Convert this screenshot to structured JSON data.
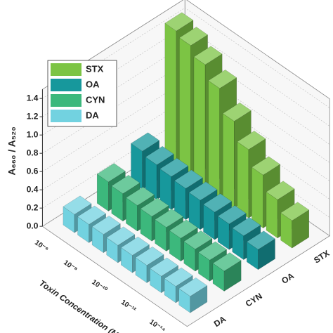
{
  "chart_data": {
    "type": "bar3d",
    "ylabel": "A₆₆₀ / A₅₂₀",
    "xlabel": "Toxin Concentration (M)",
    "categories": [
      "10⁻⁶",
      null,
      "10⁻⁸",
      null,
      "10⁻¹⁰",
      null,
      "10⁻¹²",
      null,
      "10⁻¹⁴"
    ],
    "series": [
      {
        "name": "DA",
        "color": "#72d2e0",
        "values": [
          0.2,
          0.2,
          0.2,
          0.19,
          0.19,
          0.19,
          0.18,
          0.18,
          0.18
        ]
      },
      {
        "name": "CYN",
        "color": "#3cb87c",
        "values": [
          0.32,
          0.3,
          0.28,
          0.27,
          0.26,
          0.25,
          0.24,
          0.23,
          0.22
        ]
      },
      {
        "name": "OA",
        "color": "#17989c",
        "values": [
          0.42,
          0.38,
          0.36,
          0.34,
          0.32,
          0.3,
          0.28,
          0.26,
          0.22
        ]
      },
      {
        "name": "STX",
        "color": "#7cc444",
        "values": [
          1.5,
          1.45,
          1.35,
          1.2,
          0.95,
          0.75,
          0.58,
          0.42,
          0.3
        ]
      }
    ],
    "ylim": [
      0,
      1.5
    ],
    "yticks": [
      {
        "value": 0,
        "label": "0.0"
      },
      {
        "value": 0.2,
        "label": "0.2"
      },
      {
        "value": 0.4,
        "label": "0.4"
      },
      {
        "value": 0.6,
        "label": "0.6"
      },
      {
        "value": 0.8,
        "label": "0.8"
      },
      {
        "value": 1,
        "label": "1.0"
      },
      {
        "value": 1.2,
        "label": "1.2"
      },
      {
        "value": 1.4,
        "label": "1.4"
      }
    ],
    "grid": true,
    "legend": "upper left"
  }
}
